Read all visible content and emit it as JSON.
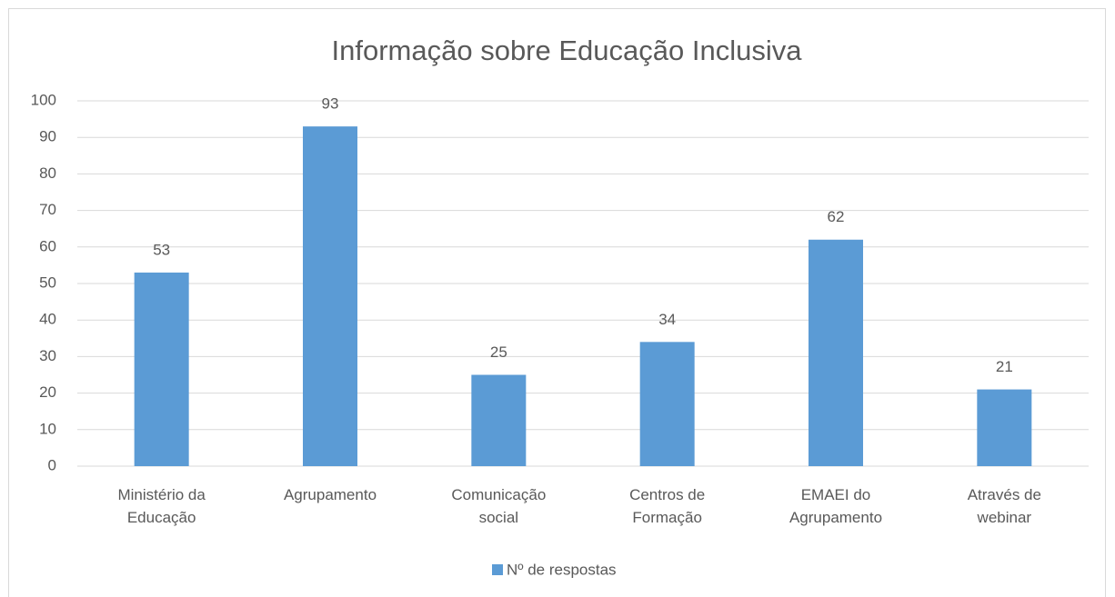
{
  "chart_data": {
    "type": "bar",
    "title": "Informação sobre Educação Inclusiva",
    "categories": [
      "Ministério da Educação",
      "Agrupamento",
      "Comunicação social",
      "Centros de Formação",
      "EMAEI do Agrupamento",
      "Através de webinar"
    ],
    "series": [
      {
        "name": "Nº de respostas",
        "color": "#5b9bd5",
        "values": [
          53,
          93,
          25,
          34,
          62,
          21
        ]
      }
    ],
    "ylim": [
      0,
      100
    ],
    "yticks": [
      0,
      10,
      20,
      30,
      40,
      50,
      60,
      70,
      80,
      90,
      100
    ],
    "grid": true,
    "legend": "bottom"
  }
}
